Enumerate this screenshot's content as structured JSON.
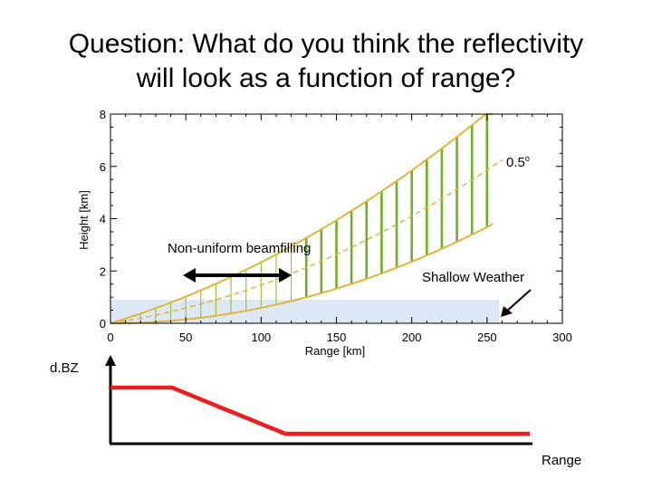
{
  "title": {
    "line1": "Question:  What do you think the reflectivity",
    "line2": "will look as a function of range?"
  },
  "colors": {
    "beam_edge": "#e1b53a",
    "beam_spokes_near": "#9ac43b",
    "beam_spokes_far": "#6fb02a",
    "shallow_weather": "#dce8f6",
    "dbz_line": "#ee1c1c",
    "axis": "#000000"
  },
  "beam_plot": {
    "x_label": "Range [km]",
    "y_label": "Height [km]",
    "x_ticks": [
      "0",
      "50",
      "100",
      "150",
      "200",
      "250",
      "300"
    ],
    "y_ticks": [
      "0",
      "2",
      "4",
      "6",
      "8"
    ],
    "xlim": [
      0,
      300
    ],
    "ylim": [
      0,
      8
    ],
    "elevation_label": "0.5",
    "elevation_unit": "o",
    "shallow_weather_top_km": 0.9,
    "shallow_weather_range_km": [
      0,
      258
    ]
  },
  "annotations": {
    "beamfilling": "Non-uniform beamfilling",
    "shallow_weather": "Shallow Weather"
  },
  "sketch": {
    "y_label": "d.BZ",
    "x_label": "Range"
  }
}
